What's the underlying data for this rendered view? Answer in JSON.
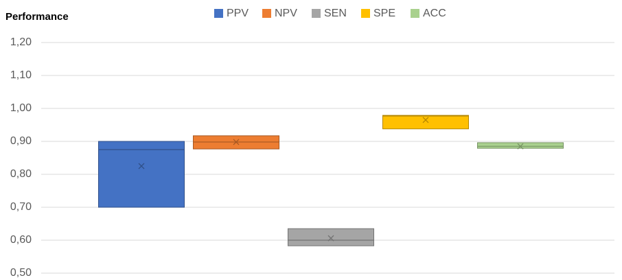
{
  "chart_data": {
    "type": "box",
    "title": "Performance",
    "series": [
      {
        "name": "PPV",
        "color": "#4472c4",
        "q1": 0.7,
        "median": 0.875,
        "q3": 0.9,
        "mean": 0.825
      },
      {
        "name": "NPV",
        "color": "#ed7d31",
        "q1": 0.877,
        "median": 0.898,
        "q3": 0.917,
        "mean": 0.898
      },
      {
        "name": "SEN",
        "color": "#a5a5a5",
        "q1": 0.583,
        "median": 0.6,
        "q3": 0.635,
        "mean": 0.606
      },
      {
        "name": "SPE",
        "color": "#ffc000",
        "q1": 0.938,
        "median": 0.977,
        "q3": 0.979,
        "mean": 0.965
      },
      {
        "name": "ACC",
        "color": "#a9d18e",
        "q1": 0.879,
        "median": 0.885,
        "q3": 0.896,
        "mean": 0.885
      }
    ],
    "ylim": [
      0.5,
      1.2
    ],
    "yticks": [
      {
        "value": 0.5,
        "label": "0,50"
      },
      {
        "value": 0.6,
        "label": "0,60"
      },
      {
        "value": 0.7,
        "label": "0,70"
      },
      {
        "value": 0.8,
        "label": "0,80"
      },
      {
        "value": 0.9,
        "label": "0,90"
      },
      {
        "value": 1.0,
        "label": "1,00"
      },
      {
        "value": 1.1,
        "label": "1,10"
      },
      {
        "value": 1.2,
        "label": "1,20"
      }
    ],
    "grid": true,
    "legend": "top"
  }
}
